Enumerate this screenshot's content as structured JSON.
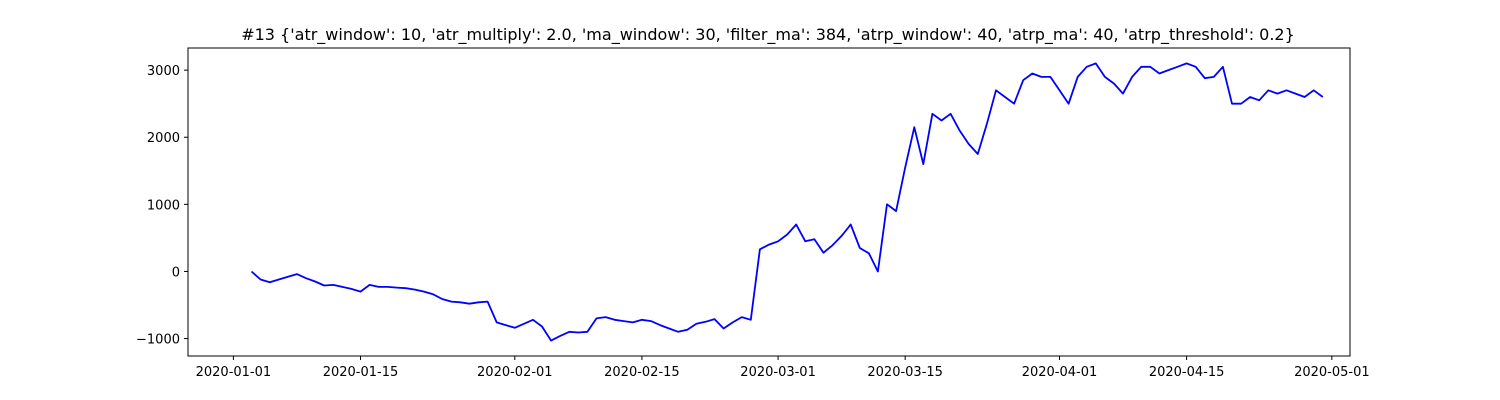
{
  "chart_data": {
    "type": "line",
    "title": "#13 {'atr_window': 10, 'atr_multiply': 2.0, 'ma_window': 30, 'filter_ma': 384, 'atrp_window': 40, 'atrp_ma': 40, 'atrp_threshold': 0.2}",
    "xlabel": "",
    "ylabel": "",
    "x_ticks": [
      "2020-01-01",
      "2020-01-15",
      "2020-02-01",
      "2020-02-15",
      "2020-03-01",
      "2020-03-15",
      "2020-04-01",
      "2020-04-15",
      "2020-05-01"
    ],
    "y_ticks": [
      -1000,
      0,
      1000,
      2000,
      3000
    ],
    "xlim": [
      "2019-12-27",
      "2020-05-03"
    ],
    "ylim": [
      -1260,
      3330
    ],
    "grid": false,
    "series": [
      {
        "color": "#0000ff",
        "x": [
          "2020-01-03",
          "2020-01-04",
          "2020-01-05",
          "2020-01-06",
          "2020-01-07",
          "2020-01-08",
          "2020-01-09",
          "2020-01-10",
          "2020-01-11",
          "2020-01-12",
          "2020-01-13",
          "2020-01-14",
          "2020-01-15",
          "2020-01-16",
          "2020-01-17",
          "2020-01-18",
          "2020-01-19",
          "2020-01-20",
          "2020-01-21",
          "2020-01-22",
          "2020-01-23",
          "2020-01-24",
          "2020-01-25",
          "2020-01-26",
          "2020-01-27",
          "2020-01-28",
          "2020-01-29",
          "2020-01-30",
          "2020-01-31",
          "2020-02-01",
          "2020-02-02",
          "2020-02-03",
          "2020-02-04",
          "2020-02-05",
          "2020-02-06",
          "2020-02-07",
          "2020-02-08",
          "2020-02-09",
          "2020-02-10",
          "2020-02-11",
          "2020-02-12",
          "2020-02-13",
          "2020-02-14",
          "2020-02-15",
          "2020-02-16",
          "2020-02-17",
          "2020-02-18",
          "2020-02-19",
          "2020-02-20",
          "2020-02-21",
          "2020-02-22",
          "2020-02-23",
          "2020-02-24",
          "2020-02-25",
          "2020-02-26",
          "2020-02-27",
          "2020-02-28",
          "2020-02-29",
          "2020-03-01",
          "2020-03-02",
          "2020-03-03",
          "2020-03-04",
          "2020-03-05",
          "2020-03-06",
          "2020-03-07",
          "2020-03-08",
          "2020-03-09",
          "2020-03-10",
          "2020-03-11",
          "2020-03-12",
          "2020-03-13",
          "2020-03-14",
          "2020-03-15",
          "2020-03-16",
          "2020-03-17",
          "2020-03-18",
          "2020-03-19",
          "2020-03-20",
          "2020-03-21",
          "2020-03-22",
          "2020-03-23",
          "2020-03-24",
          "2020-03-25",
          "2020-03-26",
          "2020-03-27",
          "2020-03-28",
          "2020-03-29",
          "2020-03-30",
          "2020-03-31",
          "2020-04-01",
          "2020-04-02",
          "2020-04-03",
          "2020-04-04",
          "2020-04-05",
          "2020-04-06",
          "2020-04-07",
          "2020-04-08",
          "2020-04-09",
          "2020-04-10",
          "2020-04-11",
          "2020-04-12",
          "2020-04-13",
          "2020-04-14",
          "2020-04-15",
          "2020-04-16",
          "2020-04-17",
          "2020-04-18",
          "2020-04-19",
          "2020-04-20",
          "2020-04-21",
          "2020-04-22",
          "2020-04-23",
          "2020-04-24",
          "2020-04-25",
          "2020-04-26",
          "2020-04-27",
          "2020-04-28",
          "2020-04-29",
          "2020-04-30"
        ],
        "values": [
          0,
          -120,
          -160,
          -120,
          -80,
          -40,
          -100,
          -150,
          -210,
          -200,
          -230,
          -260,
          -300,
          -200,
          -230,
          -230,
          -240,
          -250,
          -270,
          -300,
          -340,
          -410,
          -450,
          -460,
          -480,
          -460,
          -450,
          -760,
          -800,
          -840,
          -780,
          -720,
          -820,
          -1030,
          -960,
          -900,
          -910,
          -900,
          -700,
          -680,
          -720,
          -740,
          -760,
          -720,
          -740,
          -800,
          -850,
          -900,
          -870,
          -780,
          -750,
          -710,
          -850,
          -760,
          -680,
          -720,
          330,
          400,
          450,
          550,
          700,
          450,
          480,
          280,
          390,
          530,
          700,
          350,
          270,
          0,
          1000,
          900,
          1550,
          2150,
          1600,
          2350,
          2250,
          2350,
          2100,
          1900,
          1750,
          2200,
          2700,
          2600,
          2500,
          2850,
          2950,
          2900,
          2900,
          2700,
          2500,
          2900,
          3050,
          3100,
          2900,
          2800,
          2650,
          2900,
          3050,
          3050,
          2950,
          3000,
          3050,
          3100,
          3050,
          2880,
          2900,
          3050,
          2500,
          2500,
          2600,
          2550,
          2700,
          2650,
          2700,
          2650,
          2600,
          2700,
          2600
        ]
      }
    ]
  }
}
